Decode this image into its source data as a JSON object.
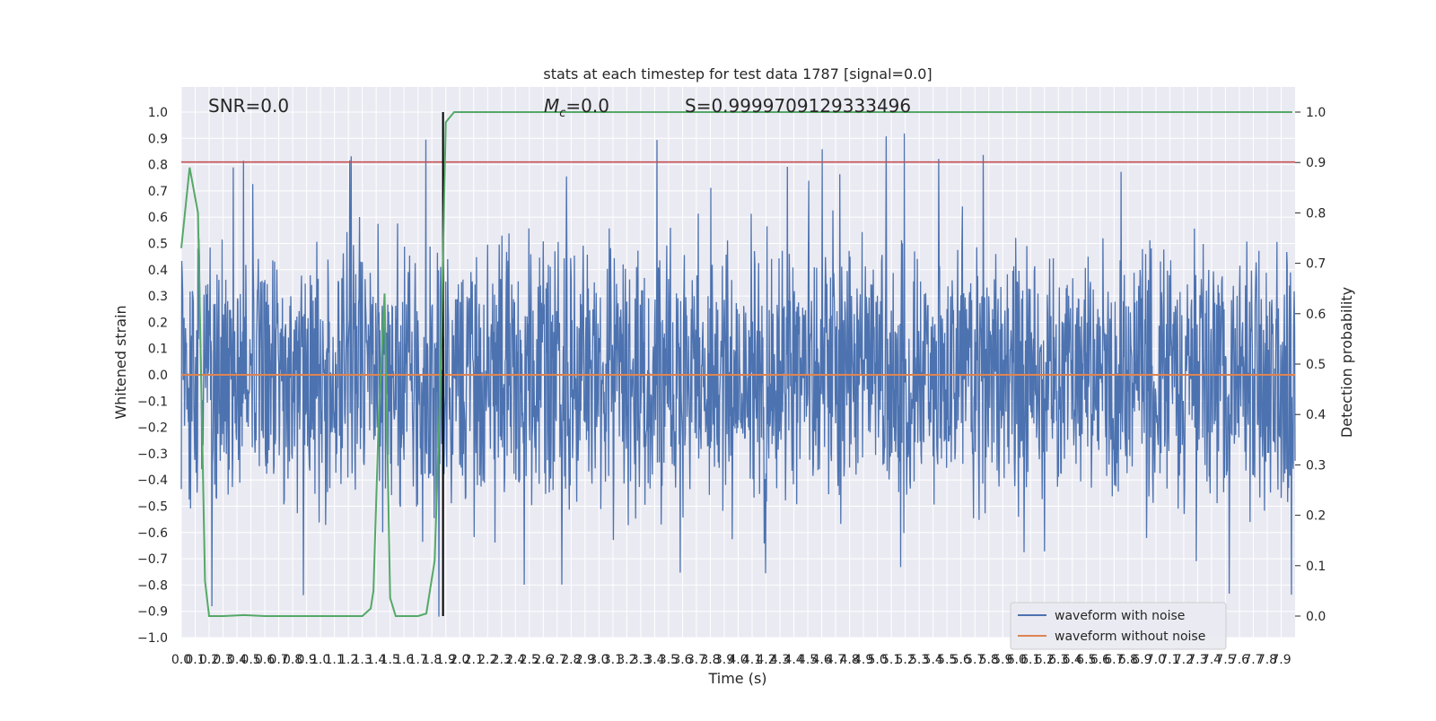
{
  "chart_data": {
    "type": "line",
    "title": "stats at each timestep for test data 1787 [signal=0.0]",
    "xlabel": "Time (s)",
    "ylabel": "Whitened strain",
    "y2label": "Detection probability",
    "xlim": [
      0.0,
      8.0
    ],
    "ylim": [
      -1.0,
      1.0
    ],
    "y2lim": [
      0.0,
      1.0
    ],
    "grid": true,
    "legend_position": "bottom-right",
    "annotations": {
      "snr": "SNR=0.0",
      "mc_symbol": "M",
      "mc_subscript": "c",
      "mc_value": "=0.0",
      "s": "S=0.9999709129333496"
    },
    "threshold_y": 0.81,
    "marker_x": 1.88,
    "x_ticks": [
      "0.0",
      "0.1",
      "0.2",
      "0.3",
      "0.4",
      "0.5",
      "0.6",
      "0.7",
      "0.8",
      "0.9",
      "1.0",
      "1.1",
      "1.2",
      "1.3",
      "1.4",
      "1.5",
      "1.6",
      "1.7",
      "1.8",
      "1.9",
      "2.0",
      "2.1",
      "2.2",
      "2.3",
      "2.4",
      "2.5",
      "2.6",
      "2.7",
      "2.8",
      "2.9",
      "3.0",
      "3.1",
      "3.2",
      "3.3",
      "3.4",
      "3.5",
      "3.6",
      "3.7",
      "3.8",
      "3.9",
      "4.0",
      "4.1",
      "4.2",
      "4.3",
      "4.4",
      "4.5",
      "4.6",
      "4.7",
      "4.8",
      "4.9",
      "5.0",
      "5.1",
      "5.2",
      "5.3",
      "5.4",
      "5.5",
      "5.6",
      "5.7",
      "5.8",
      "5.9",
      "6.0",
      "6.1",
      "6.2",
      "6.3",
      "6.4",
      "6.5",
      "6.6",
      "6.7",
      "6.8",
      "6.9",
      "7.0",
      "7.1",
      "7.2",
      "7.3",
      "7.4",
      "7.5",
      "7.6",
      "7.7",
      "7.8",
      "7.9"
    ],
    "y_ticks": [
      "1.0",
      "0.9",
      "0.8",
      "0.7",
      "0.6",
      "0.5",
      "0.4",
      "0.3",
      "0.2",
      "0.1",
      "0.0",
      "−0.1",
      "−0.2",
      "−0.3",
      "−0.4",
      "−0.5",
      "−0.6",
      "−0.7",
      "−0.8",
      "−0.9",
      "−1.0"
    ],
    "y2_ticks": [
      "1.0",
      "0.9",
      "0.8",
      "0.7",
      "0.6",
      "0.5",
      "0.4",
      "0.3",
      "0.2",
      "0.1",
      "0.0"
    ],
    "series": [
      {
        "name": "waveform with noise",
        "color": "#4c72b0",
        "note": "dense noise trace, approx range -0.9 to 1.0"
      },
      {
        "name": "waveform without noise",
        "color": "#dd8452",
        "values": [
          0.0,
          0.0
        ]
      },
      {
        "name": "",
        "color": "#55a868",
        "axis": "right",
        "x": [
          0.0,
          0.06,
          0.12,
          0.17,
          0.2,
          0.24,
          0.3,
          0.45,
          0.6,
          0.8,
          1.0,
          1.2,
          1.3,
          1.36,
          1.38,
          1.42,
          1.46,
          1.5,
          1.54,
          1.6,
          1.7,
          1.76,
          1.82,
          1.86,
          1.9,
          1.96,
          2.0,
          2.2,
          3.0,
          4.0,
          5.0,
          6.0,
          7.0,
          7.98
        ],
        "values": [
          0.73,
          0.89,
          0.8,
          0.07,
          0.0,
          0.0,
          0.0,
          0.002,
          0.0,
          0.0,
          0.0,
          0.0,
          0.0,
          0.015,
          0.05,
          0.41,
          0.64,
          0.036,
          0.0,
          0.0,
          0.0,
          0.005,
          0.11,
          0.45,
          0.98,
          1.0,
          1.0,
          1.0,
          1.0,
          1.0,
          1.0,
          1.0,
          1.0,
          1.0
        ]
      }
    ],
    "annotation_colors": {
      "threshold": "#c44e52",
      "marker": "#000000"
    }
  },
  "legend": {
    "items": [
      {
        "label": "waveform with noise",
        "color": "#4c72b0"
      },
      {
        "label": "waveform without noise",
        "color": "#dd8452"
      }
    ]
  }
}
